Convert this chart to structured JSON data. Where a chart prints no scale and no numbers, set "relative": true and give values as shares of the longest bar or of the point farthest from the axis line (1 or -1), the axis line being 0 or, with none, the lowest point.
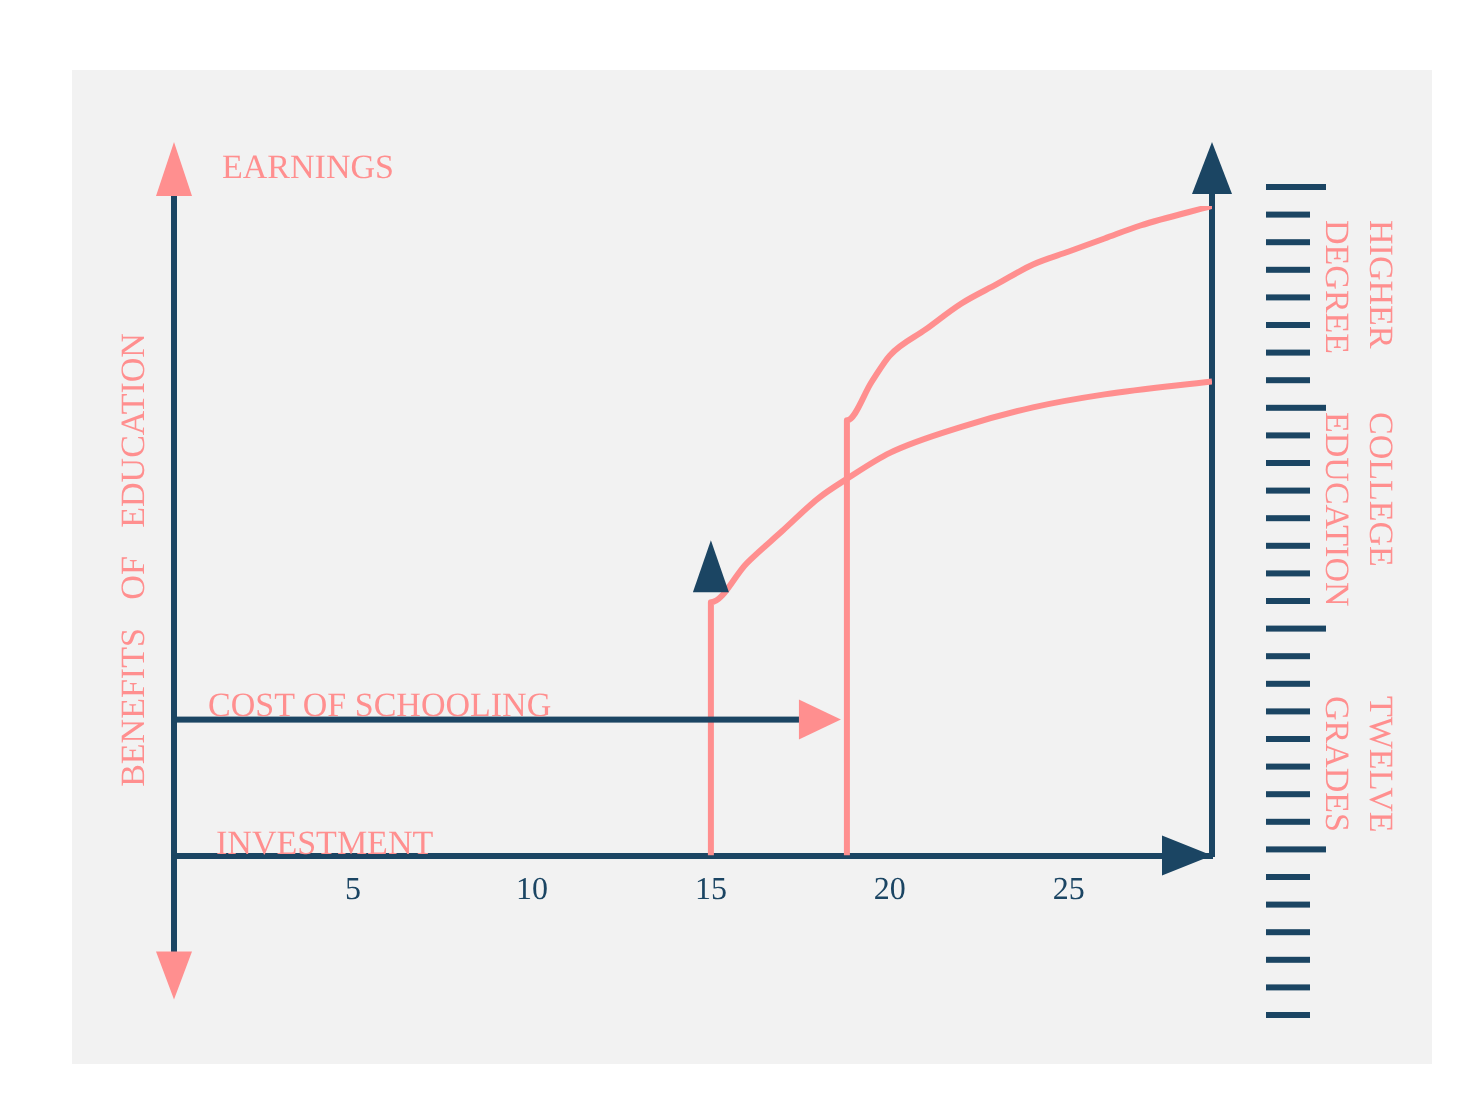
{
  "chart_data": {
    "type": "line",
    "ylabel": "BENEFITS OF EDUCATION",
    "relative": true,
    "xlim": [
      0,
      29
    ],
    "xticks": [
      5,
      10,
      15,
      20,
      25
    ],
    "tick_labels": "x",
    "annotations": [
      "EARNINGS",
      "COST OF SCHOOLING",
      "INVESTMENT",
      "HIGHER DEGREE",
      "COLLEGE EDUCATION",
      "TWELVE GRADES"
    ],
    "series": [
      {
        "color": "#ff8f8f",
        "x": [
          15,
          15,
          16,
          17,
          18,
          18.8,
          20,
          22,
          24,
          26,
          29
        ],
        "values": [
          0,
          0.39,
          0.45,
          0.5,
          0.55,
          0.58,
          0.62,
          0.66,
          0.69,
          0.71,
          0.73
        ]
      },
      {
        "color": "#ff8f8f",
        "x": [
          18.8,
          18.8,
          19.5,
          20,
          21,
          22,
          23,
          24,
          25,
          26,
          27,
          29
        ],
        "values": [
          0,
          0.67,
          0.73,
          0.77,
          0.81,
          0.85,
          0.88,
          0.91,
          0.93,
          0.95,
          0.97,
          1
        ]
      }
    ]
  }
}
